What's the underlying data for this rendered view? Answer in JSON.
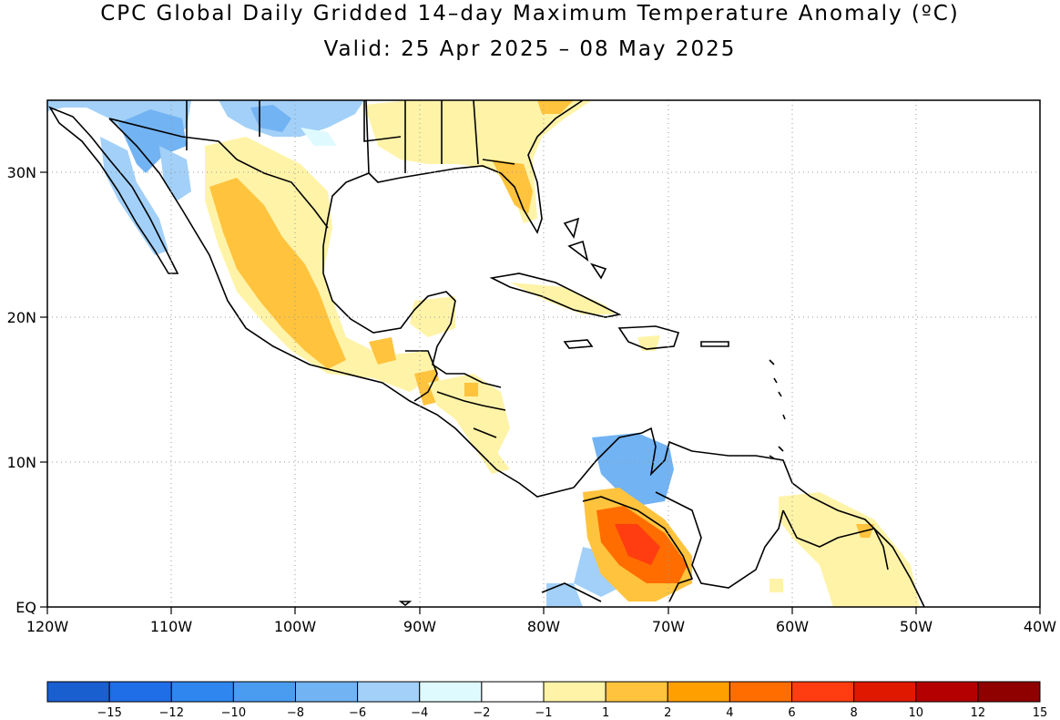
{
  "title": "CPC Global Daily Gridded 14–day Maximum Temperature Anomaly (ºC)",
  "subtitle": "Valid: 25 Apr 2025 – 08 May 2025",
  "map": {
    "lon_labels": [
      "120W",
      "110W",
      "100W",
      "90W",
      "80W",
      "70W",
      "60W",
      "50W",
      "40W"
    ],
    "lat_labels": [
      "30N",
      "20N",
      "10N",
      "EQ"
    ],
    "lon_range": [
      -120,
      -40
    ],
    "lat_range": [
      0,
      35
    ]
  },
  "colorbar": {
    "colors": [
      "#1a5fd0",
      "#1f6ee8",
      "#2f86ee",
      "#4a9cf0",
      "#72b3f3",
      "#a2d0f8",
      "#dffaff",
      "#ffffff",
      "#fff3a8",
      "#ffc33d",
      "#ffa000",
      "#ff6d00",
      "#ff3d10",
      "#e01800",
      "#b50000",
      "#8f0000"
    ],
    "labels": [
      "-15",
      "-12",
      "-10",
      "-8",
      "-6",
      "-4",
      "-2",
      "-1",
      "1",
      "2",
      "4",
      "6",
      "8",
      "10",
      "12",
      "15"
    ]
  }
}
